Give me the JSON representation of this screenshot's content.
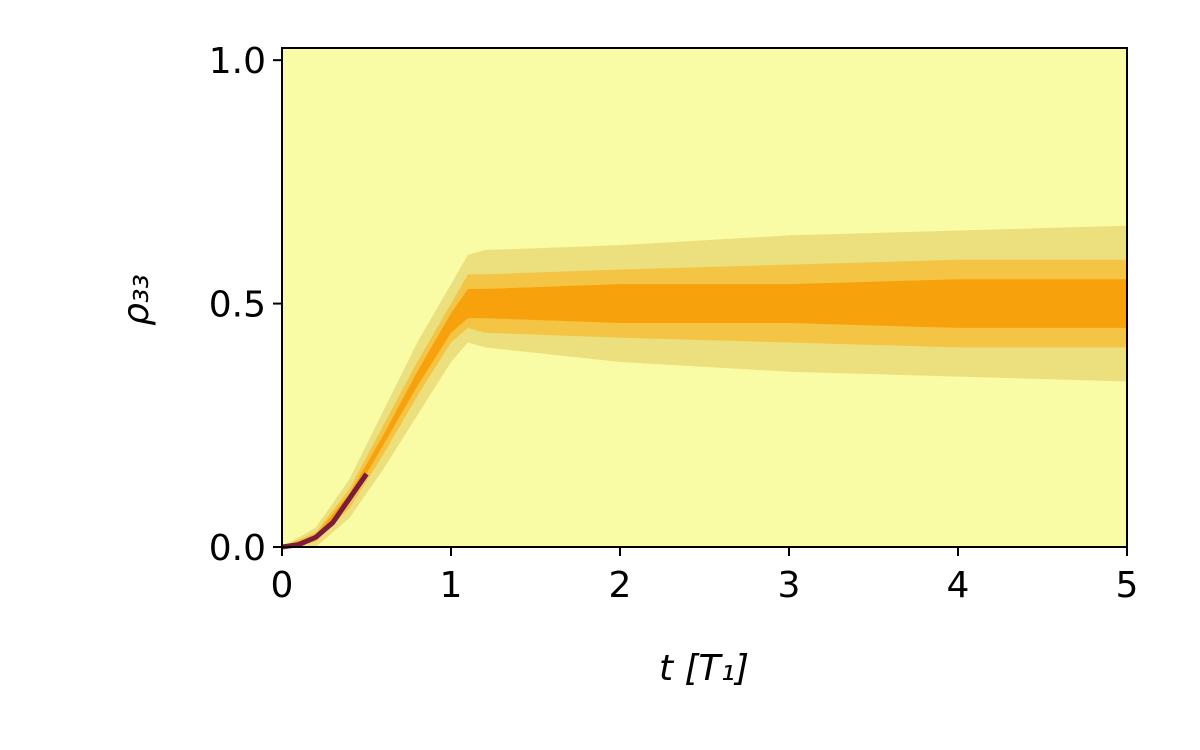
{
  "chart_data": {
    "type": "density-band",
    "xlabel": "t [T₁]",
    "ylabel": "ρ₃₃",
    "xlim": [
      0,
      5
    ],
    "ylim": [
      0,
      1.025
    ],
    "xticks": [
      0,
      1,
      2,
      3,
      4,
      5
    ],
    "yticks": [
      {
        "value": 0,
        "label": "0.0"
      },
      {
        "value": 0.5,
        "label": "0.5"
      },
      {
        "value": 1,
        "label": "1.0"
      }
    ],
    "background": "#f9fca4",
    "x": [
      0,
      0.2,
      0.4,
      0.6,
      0.8,
      1.0,
      1.1,
      1.2,
      2,
      3,
      4,
      5
    ],
    "bands": [
      {
        "color": "#ece07e",
        "lower": [
          0,
          0.0,
          0.06,
          0.16,
          0.27,
          0.38,
          0.42,
          0.41,
          0.38,
          0.36,
          0.35,
          0.34
        ],
        "upper": [
          0,
          0.04,
          0.14,
          0.28,
          0.42,
          0.54,
          0.6,
          0.61,
          0.62,
          0.64,
          0.65,
          0.66
        ]
      },
      {
        "color": "#f4c444",
        "lower": [
          0,
          0.01,
          0.08,
          0.19,
          0.31,
          0.42,
          0.45,
          0.44,
          0.43,
          0.42,
          0.41,
          0.41
        ],
        "upper": [
          0,
          0.03,
          0.12,
          0.25,
          0.38,
          0.5,
          0.56,
          0.56,
          0.57,
          0.58,
          0.59,
          0.59
        ]
      },
      {
        "color": "#f7a20c",
        "lower": [
          0,
          0.015,
          0.09,
          0.21,
          0.33,
          0.44,
          0.47,
          0.47,
          0.46,
          0.46,
          0.45,
          0.45
        ],
        "upper": [
          0,
          0.025,
          0.11,
          0.23,
          0.36,
          0.48,
          0.53,
          0.53,
          0.54,
          0.54,
          0.55,
          0.55
        ]
      }
    ],
    "core": {
      "color": "#7a1c3c",
      "x": [
        0,
        0.1,
        0.2,
        0.3,
        0.4,
        0.5
      ],
      "values": [
        0,
        0.005,
        0.02,
        0.05,
        0.1,
        0.15
      ]
    }
  }
}
